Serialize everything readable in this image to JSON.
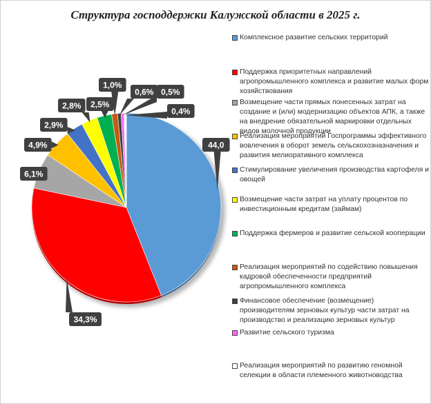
{
  "chart_data": {
    "type": "pie",
    "title": "Структура господдержки Калужской области в 2025 г.",
    "legend_position": "right",
    "categories": [
      "Комплексное развитие сельских территорий",
      "Поддержка приоритетных направлений агропромышленного комплекса и развитие малых форм хозяйствования",
      "Возмещение части прямых понесенных затрат на создание и (или) модернизацию объектов АПК, а также на внедрение обязательной маркировки отдельных видов молочной продукции",
      "Реализация мероприятий Госпрограммы эффективного вовлечения в оборот земель сельскохозназначения и развития мелиоративного комплекса",
      "Стимулирование увеличения производства картофеля и овощей",
      "Возмещение части затрат на уплату процентов по инвестиционным кредитам (займам)",
      "Поддержка фермеров и развитие сельской кооперации",
      "Реализация мероприятий по содействию повышения кадровой обеспеченности предприятий агропромышленного комплекса",
      "Финансовое обеспечение (возмещение) производителям зерновых культур части затрат на производство и реализацию зерновых культур",
      "Развитие сельского туризма",
      "Реализация мероприятий по развитию геномной селекции в области племенного животноводства"
    ],
    "values": [
      44.0,
      34.3,
      6.1,
      4.9,
      2.9,
      2.8,
      2.5,
      1.0,
      0.6,
      0.5,
      0.4
    ],
    "data_labels": [
      "44,0",
      "34,3%",
      "6,1%",
      "4,9%",
      "2,9%",
      "2,8%",
      "2,5%",
      "1,0%",
      "0,6%",
      "0,5%",
      "0,4%"
    ],
    "colors": [
      "#5b9bd5",
      "#ff0000",
      "#a6a6a6",
      "#ffc000",
      "#4472c4",
      "#ffff00",
      "#00b050",
      "#c55a11",
      "#404040",
      "#ff66ff",
      "#ffffff"
    ]
  }
}
